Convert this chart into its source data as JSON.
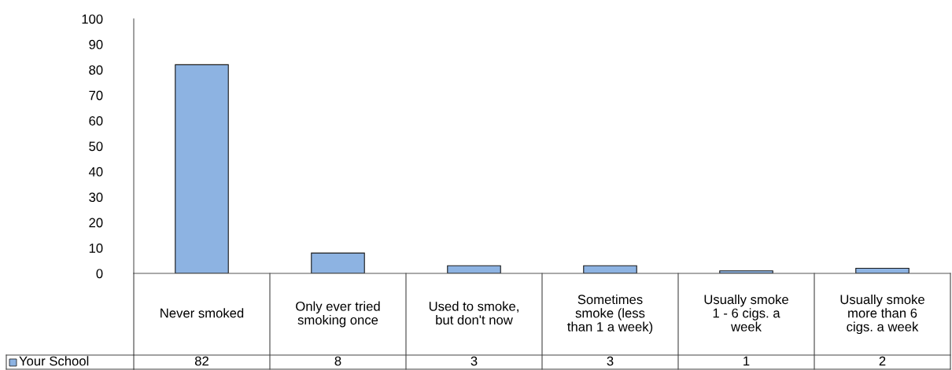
{
  "chart_data": {
    "type": "bar",
    "categories": [
      "Never smoked",
      "Only ever tried\nsmoking once",
      "Used to smoke,\nbut don't now",
      "Sometimes\nsmoke (less\nthan 1 a week)",
      "Usually smoke\n1 - 6 cigs. a\nweek",
      "Usually smoke\nmore than 6\ncigs. a week"
    ],
    "series": [
      {
        "name": "Your School",
        "color": "#8db3e2",
        "values": [
          82,
          8,
          3,
          3,
          1,
          2
        ]
      }
    ],
    "ylim": [
      0,
      100
    ],
    "yticks": [
      0,
      10,
      20,
      30,
      40,
      50,
      60,
      70,
      80,
      90,
      100
    ],
    "grid": false,
    "legend": "bottom left",
    "data_labels": true
  }
}
